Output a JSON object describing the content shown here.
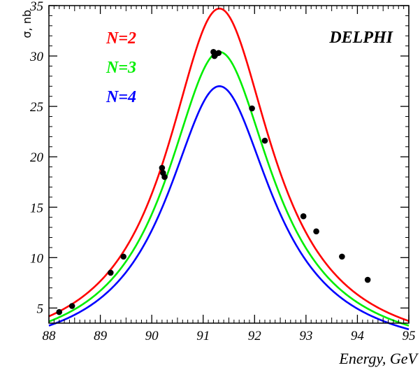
{
  "chart_data": {
    "type": "line",
    "title": "",
    "xlabel": "Energy, GeV",
    "ylabel": "σ, nb",
    "annotation": "DELPHI",
    "xlim": [
      88,
      95
    ],
    "ylim": [
      3.5,
      35
    ],
    "x_ticks": [
      88,
      89,
      90,
      91,
      92,
      93,
      94,
      95
    ],
    "y_ticks": [
      5,
      10,
      15,
      20,
      25,
      30,
      35
    ],
    "legend_position": "top-left",
    "series": [
      {
        "name": "N=2",
        "color": "#ff0000",
        "peak": 34.7,
        "width": 2.5
      },
      {
        "name": "N=3",
        "color": "#00ee00",
        "peak": 30.4,
        "width": 2.5
      },
      {
        "name": "N=4",
        "color": "#0000ff",
        "peak": 27.0,
        "width": 2.5
      }
    ],
    "curve_params": {
      "mass": 91.3,
      "x_range": [
        88,
        95
      ]
    },
    "points": {
      "name": "data",
      "color": "#000000",
      "x": [
        88.2,
        88.45,
        89.2,
        89.45,
        90.2,
        90.22,
        90.25,
        91.2,
        91.22,
        91.25,
        91.3,
        91.95,
        92.2,
        92.95,
        93.2,
        93.7,
        94.2
      ],
      "y": [
        4.6,
        5.2,
        8.5,
        10.1,
        18.9,
        18.4,
        18.0,
        30.4,
        30.0,
        30.2,
        30.3,
        24.8,
        21.6,
        14.1,
        12.6,
        10.1,
        7.8
      ]
    }
  }
}
